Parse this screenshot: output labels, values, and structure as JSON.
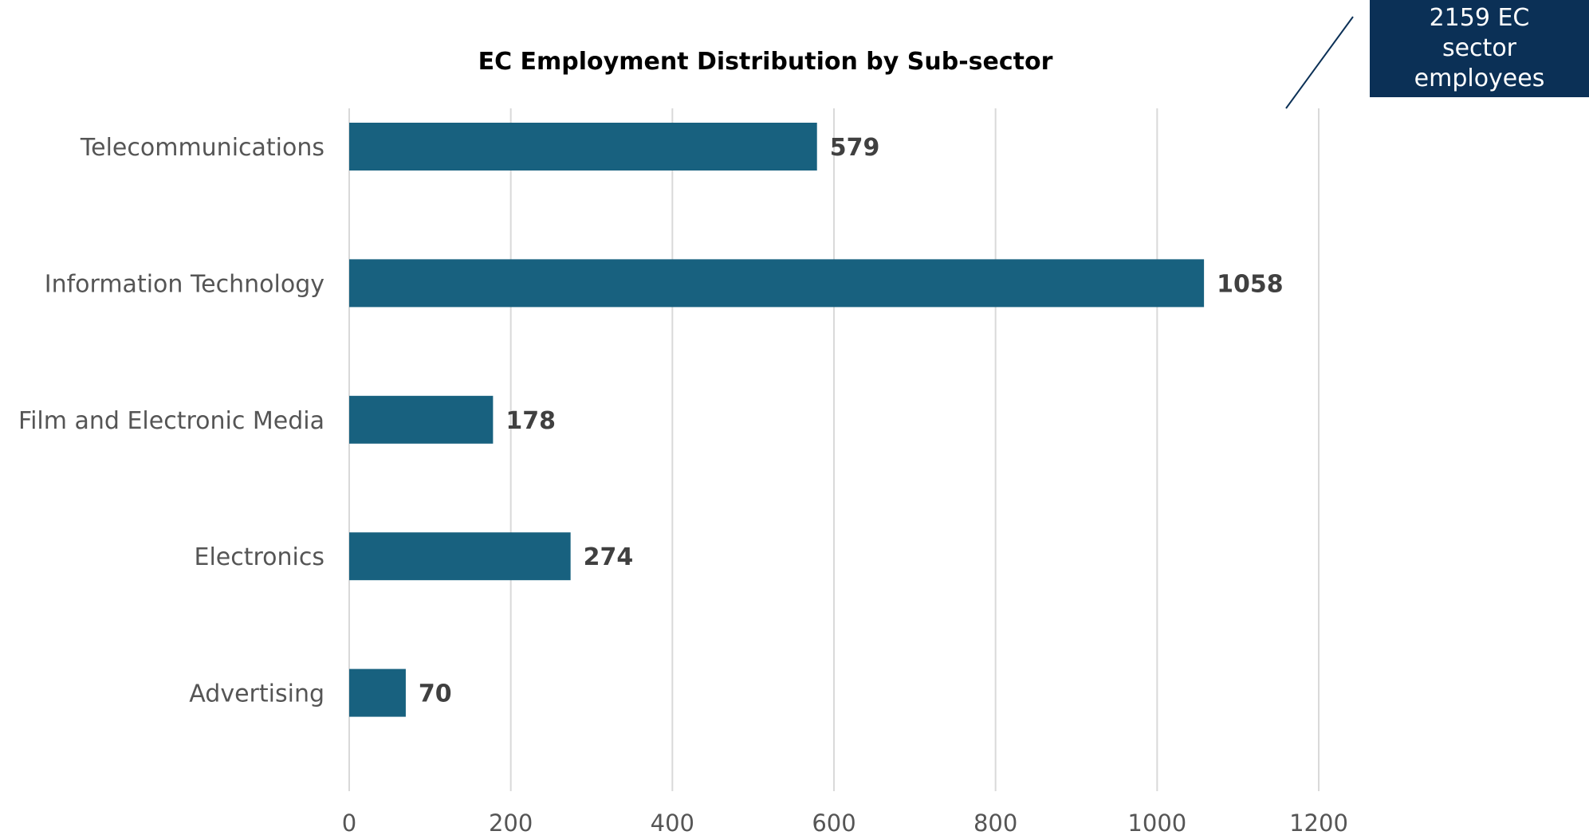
{
  "chart_data": {
    "type": "bar",
    "orientation": "horizontal",
    "title": "EC Employment Distribution by Sub-sector",
    "categories": [
      "Telecommunications",
      "Information Technology",
      "Film and Electronic Media",
      "Electronics",
      "Advertising"
    ],
    "values": [
      579,
      1058,
      178,
      274,
      70
    ],
    "xlabel": "",
    "ylabel": "",
    "xlim": [
      0,
      1200
    ],
    "xticks": [
      0,
      200,
      400,
      600,
      800,
      1000,
      1200
    ],
    "grid": "vertical",
    "legend": "none",
    "bar_color": "#18617f"
  },
  "callout": {
    "lines": [
      "2159 EC",
      "sector",
      "employees"
    ],
    "background": "#0b3056",
    "line_color": "#0b3056"
  }
}
